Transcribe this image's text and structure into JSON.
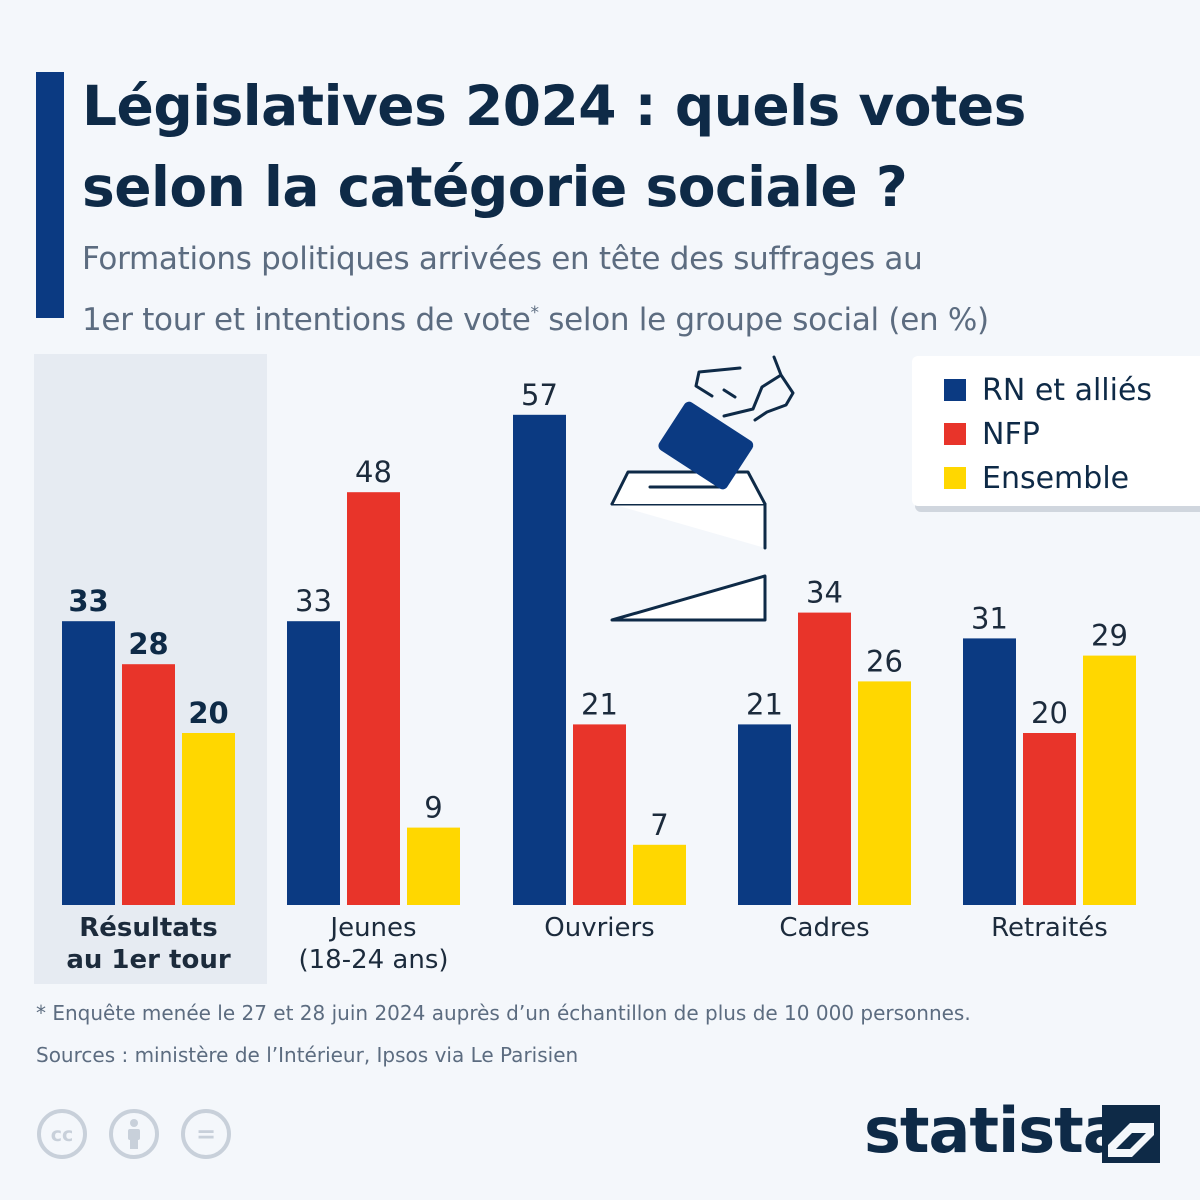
{
  "header": {
    "title_line1": "Législatives 2024 : quels votes",
    "title_line2": "selon la catégorie sociale ?",
    "subtitle_line1": "Formations politiques arrivées en tête des suffrages au",
    "subtitle_line2a": "1er tour et intentions de vote",
    "subtitle_star": "*",
    "subtitle_line2b": " selon le groupe social (en %)"
  },
  "legend": {
    "items": [
      {
        "label": "RN et alliés",
        "color": "#0b3a82"
      },
      {
        "label": "NFP",
        "color": "#e8342a"
      },
      {
        "label": "Ensemble",
        "color": "#ffd700"
      }
    ]
  },
  "chart_data": {
    "type": "bar",
    "title": "Législatives 2024 : quels votes selon la catégorie sociale ?",
    "ylabel": "en %",
    "ylim": [
      0,
      57
    ],
    "grid": false,
    "categories": [
      "Résultats au 1er tour",
      "Jeunes (18-24 ans)",
      "Ouvriers",
      "Cadres",
      "Retraités"
    ],
    "category_lines": [
      [
        "Résultats",
        "au 1er tour"
      ],
      [
        "Jeunes",
        "(18-24 ans)"
      ],
      [
        "Ouvriers"
      ],
      [
        "Cadres"
      ],
      [
        "Retraités"
      ]
    ],
    "series": [
      {
        "name": "RN et alliés",
        "color": "#0b3a82",
        "values": [
          33,
          33,
          57,
          21,
          31
        ]
      },
      {
        "name": "NFP",
        "color": "#e8342a",
        "values": [
          28,
          48,
          21,
          34,
          20
        ]
      },
      {
        "name": "Ensemble",
        "color": "#ffd700",
        "values": [
          20,
          9,
          7,
          26,
          29
        ]
      }
    ],
    "highlighted_category": "Résultats au 1er tour"
  },
  "footer": {
    "footnote": "* Enquête menée le 27 et 28 juin 2024 auprès d’un échantillon de plus de 10 000 personnes.",
    "sources": "Sources : ministère de l’Intérieur, Ipsos via Le Parisien",
    "license_icons": [
      "cc-icon",
      "attribution-icon",
      "no-derivatives-icon"
    ],
    "license_icon_text": [
      "cc",
      "="
    ],
    "brand": "statista"
  }
}
